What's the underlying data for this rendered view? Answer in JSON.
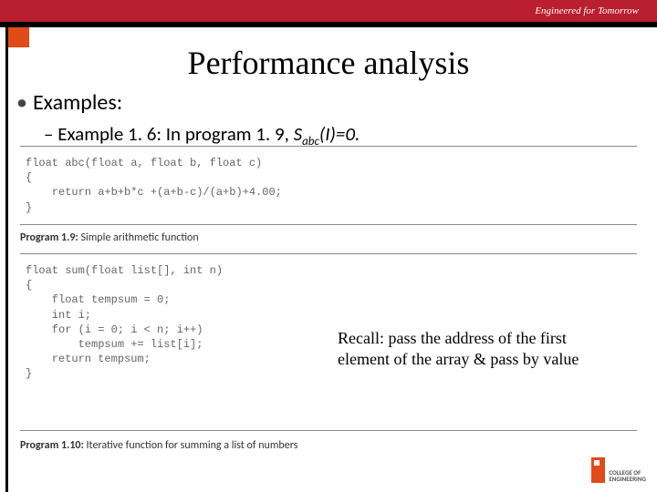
{
  "banner": {
    "tagline": "Engineered for Tomorrow",
    "bg_color": "#b91f2e",
    "text_color": "#ffffff"
  },
  "accent": {
    "orange": "#e24b18",
    "black": "#000000"
  },
  "title": "Performance analysis",
  "bullets": {
    "main": "Examples:",
    "sub_prefix": "– Example 1. 6: In program 1. 9, ",
    "sub_math_s": "S",
    "sub_math_sub": "abc",
    "sub_math_arg": "(I)=0."
  },
  "code1": {
    "text": "float abc(float a, float b, float c)\n{\n    return a+b+b*c +(a+b-c)/(a+b)+4.00;\n}"
  },
  "caption1": {
    "bold": "Program 1.9:",
    "rest": " Simple arithmetic function"
  },
  "code2": {
    "text": "float sum(float list[], int n)\n{\n    float tempsum = 0;\n    int i;\n    for (i = 0; i < n; i++)\n        tempsum += list[i];\n    return tempsum;\n}"
  },
  "caption2": {
    "bold": "Program 1.10:",
    "rest": " Iterative function for summing a list of numbers"
  },
  "recall": "Recall: pass the address of the first element of the array & pass by value",
  "logo": {
    "line1": "COLLEGE OF",
    "line2": "ENGINEERING"
  }
}
